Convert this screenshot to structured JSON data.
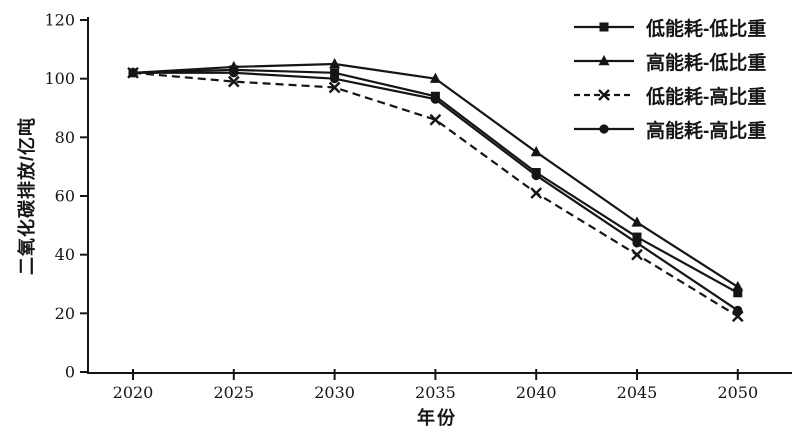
{
  "chart_data": {
    "type": "line",
    "title": "",
    "x": [
      2020,
      2025,
      2030,
      2035,
      2040,
      2045,
      2050
    ],
    "series": [
      {
        "name": "低能耗-低比重",
        "marker": "square",
        "line": "solid",
        "values": [
          102,
          103,
          102,
          94,
          68,
          46,
          27
        ]
      },
      {
        "name": "高能耗-低比重",
        "marker": "triangle",
        "line": "solid",
        "values": [
          102,
          104,
          105,
          100,
          75,
          51,
          29
        ]
      },
      {
        "name": "低能耗-高比重",
        "marker": "x",
        "line": "dashed",
        "values": [
          102,
          99,
          97,
          86,
          61,
          40,
          19
        ]
      },
      {
        "name": "高能耗-高比重",
        "marker": "circle",
        "line": "solid",
        "values": [
          102,
          102,
          100,
          93,
          67,
          44,
          21
        ]
      }
    ],
    "xlabel": "年份",
    "ylabel": "二氧化碳排放/亿吨",
    "ylim": [
      0,
      120
    ],
    "ytick_step": 20,
    "yticks": [
      0,
      20,
      40,
      60,
      80,
      100,
      120
    ],
    "grid": false,
    "legend_position": "top-right",
    "line_color": "#151515",
    "background": "#ffffff"
  }
}
